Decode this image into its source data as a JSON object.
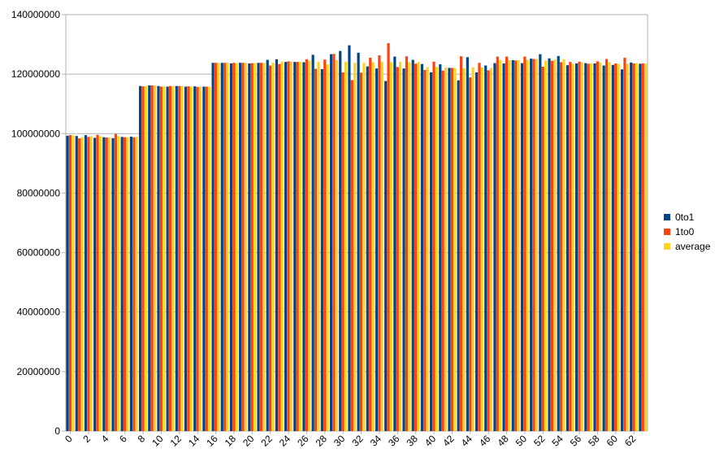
{
  "chart_data": {
    "type": "bar",
    "title": "",
    "xlabel": "",
    "ylabel": "",
    "ylim": [
      0,
      140000000
    ],
    "yticks": [
      0,
      20000000,
      40000000,
      60000000,
      80000000,
      100000000,
      120000000,
      140000000
    ],
    "ytick_labels": [
      "0",
      "20000000",
      "40000000",
      "60000000",
      "80000000",
      "100000000",
      "120000000",
      "140000000"
    ],
    "xtick_labels": [
      "0",
      "2",
      "4",
      "6",
      "8",
      "10",
      "12",
      "14",
      "16",
      "18",
      "20",
      "22",
      "24",
      "26",
      "28",
      "30",
      "32",
      "34",
      "36",
      "38",
      "40",
      "42",
      "44",
      "46",
      "48",
      "50",
      "52",
      "54",
      "56",
      "58",
      "60",
      "62"
    ],
    "grid": "horizontal",
    "legend": "right",
    "categories": [
      "0",
      "1",
      "2",
      "3",
      "4",
      "5",
      "6",
      "7",
      "8",
      "9",
      "10",
      "11",
      "12",
      "13",
      "14",
      "15",
      "16",
      "17",
      "18",
      "19",
      "20",
      "21",
      "22",
      "23",
      "24",
      "25",
      "26",
      "27",
      "28",
      "29",
      "30",
      "31",
      "32",
      "33",
      "34",
      "35",
      "36",
      "37",
      "38",
      "39",
      "40",
      "41",
      "42",
      "43",
      "44",
      "45",
      "46",
      "47",
      "48",
      "49",
      "50",
      "51",
      "52",
      "53",
      "54",
      "55",
      "56",
      "57",
      "58",
      "59",
      "60",
      "61",
      "62",
      "63"
    ],
    "series": [
      {
        "name": "0to1",
        "color": "#004586",
        "values": [
          99300000,
          99200000,
          99500000,
          98600000,
          98800000,
          98500000,
          98900000,
          99000000,
          116000000,
          116200000,
          116000000,
          115800000,
          116000000,
          115800000,
          115900000,
          115800000,
          123800000,
          123800000,
          123600000,
          123800000,
          123600000,
          123800000,
          124800000,
          125000000,
          124100000,
          124100000,
          124000000,
          126500000,
          121700000,
          126700000,
          127800000,
          129700000,
          127200000,
          122600000,
          121900000,
          117700000,
          125900000,
          121900000,
          124800000,
          123400000,
          120600000,
          123300000,
          122100000,
          117900000,
          125700000,
          120600000,
          122900000,
          123700000,
          123600000,
          124700000,
          123700000,
          125200000,
          126700000,
          125300000,
          126100000,
          123000000,
          123600000,
          123700000,
          123600000,
          122900000,
          123100000,
          121600000,
          123900000,
          123500000
        ]
      },
      {
        "name": "1to0",
        "color": "#ff420e",
        "values": [
          99500000,
          98400000,
          98900000,
          99600000,
          98700000,
          99900000,
          98800000,
          98800000,
          115900000,
          116200000,
          115800000,
          116000000,
          116000000,
          115900000,
          115700000,
          115800000,
          123800000,
          123800000,
          123800000,
          123800000,
          123700000,
          123800000,
          122900000,
          123400000,
          124300000,
          124100000,
          125000000,
          121800000,
          124900000,
          126800000,
          120600000,
          118000000,
          120500000,
          125500000,
          126300000,
          130400000,
          122400000,
          126000000,
          123500000,
          121400000,
          124200000,
          121200000,
          122100000,
          126000000,
          118900000,
          123800000,
          121300000,
          125900000,
          125900000,
          124600000,
          125900000,
          125100000,
          122500000,
          124500000,
          124000000,
          124100000,
          124200000,
          123500000,
          124300000,
          125100000,
          123600000,
          125500000,
          123600000,
          123600000
        ]
      },
      {
        "name": "average",
        "color": "#ffd320",
        "values": [
          99400000,
          98800000,
          99200000,
          99100000,
          98700000,
          99200000,
          98800000,
          98900000,
          116000000,
          116200000,
          115900000,
          115900000,
          116000000,
          115800000,
          115800000,
          115800000,
          123800000,
          123800000,
          123700000,
          123800000,
          123700000,
          123800000,
          123800000,
          124200000,
          124200000,
          124100000,
          124500000,
          124100000,
          123300000,
          124700000,
          124200000,
          123800000,
          123800000,
          124000000,
          124100000,
          124000000,
          124100000,
          124000000,
          124100000,
          122400000,
          122400000,
          122200000,
          122100000,
          122000000,
          122300000,
          122200000,
          122100000,
          124800000,
          124700000,
          124700000,
          124800000,
          125100000,
          124600000,
          124900000,
          125000000,
          123500000,
          123900000,
          123600000,
          123900000,
          124000000,
          123400000,
          123500000,
          123700000,
          123500000
        ]
      }
    ]
  }
}
